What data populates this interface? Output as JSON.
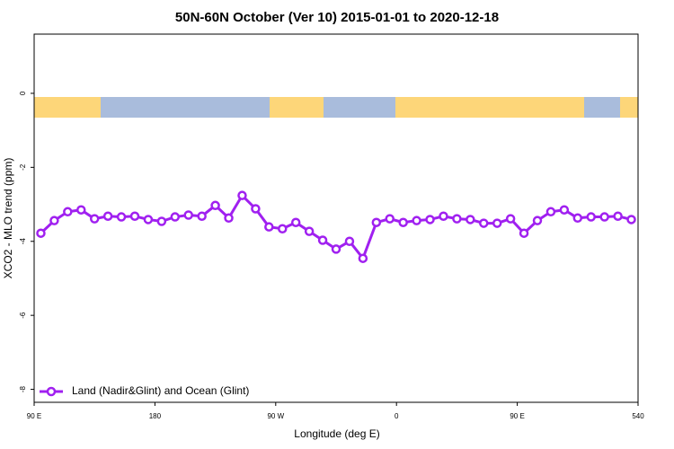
{
  "chart_data": {
    "type": "line",
    "title": "50N-60N October (Ver 10)   2015-01-01 to 2020-12-18",
    "x_label": "Longitude (deg E)",
    "y_label": "XCO2 - MLO trend (ppm)",
    "x": [
      95,
      105,
      115,
      125,
      135,
      145,
      155,
      165,
      175,
      185,
      195,
      205,
      215,
      225,
      235,
      245,
      255,
      265,
      275,
      285,
      295,
      305,
      315,
      325,
      335,
      345,
      355,
      365,
      375,
      385,
      395,
      405,
      415,
      425,
      435,
      445,
      455,
      465,
      475,
      485,
      495,
      505,
      515,
      525,
      535
    ],
    "series": [
      {
        "name": "Land (Nadir&Glint) and Ocean (Glint)",
        "color": "#a020f0",
        "values": [
          -3.78,
          -3.44,
          -3.2,
          -3.15,
          -3.39,
          -3.32,
          -3.34,
          -3.32,
          -3.41,
          -3.46,
          -3.34,
          -3.29,
          -3.32,
          -3.03,
          -3.37,
          -2.76,
          -3.12,
          -3.61,
          -3.66,
          -3.49,
          -3.73,
          -3.97,
          -4.21,
          -4.0,
          -4.46,
          -3.49,
          -3.39,
          -3.49,
          -3.44,
          -3.41,
          -3.32,
          -3.39,
          -3.41,
          -3.51,
          -3.51,
          -3.39,
          -3.78,
          -3.44,
          -3.2,
          -3.15,
          -3.37,
          -3.34,
          -3.34,
          -3.32,
          -3.41
        ]
      }
    ],
    "xlim": [
      90,
      540
    ],
    "xticks": [
      {
        "value": 90,
        "label": "90 E"
      },
      180,
      {
        "value": 270,
        "label": "90 W"
      },
      {
        "value": 360,
        "label": "0"
      },
      {
        "value": 450,
        "label": "90 E"
      },
      540
    ],
    "ylim": [
      -8.35,
      1.6
    ],
    "yticks": [
      0,
      -2,
      -4,
      -6,
      -8
    ],
    "legend": "bottom-left"
  }
}
